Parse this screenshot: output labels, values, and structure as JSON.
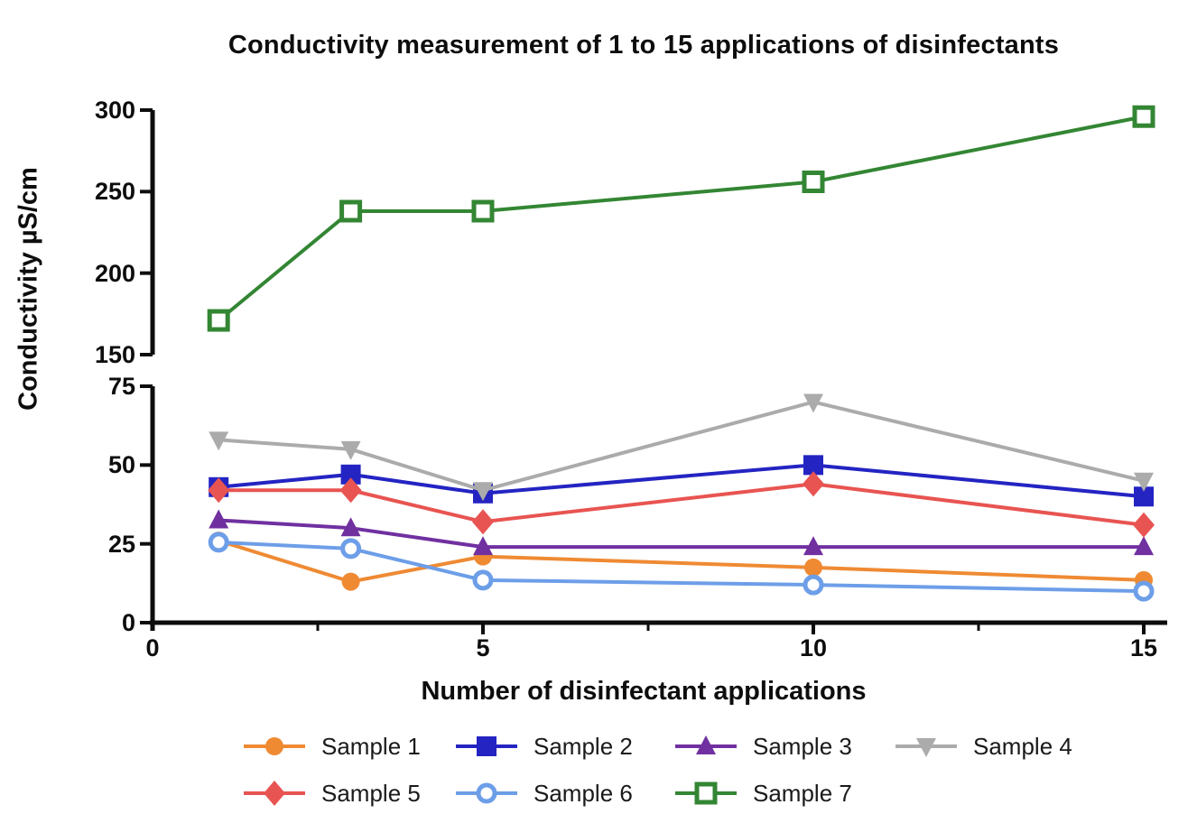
{
  "chart_data": {
    "type": "line",
    "title": "Conductivity measurement of 1 to 15 applications of disinfectants",
    "xlabel": "Number of disinfectant applications",
    "ylabel": "Conductivity µS/cm",
    "x": [
      1,
      3,
      5,
      10,
      15
    ],
    "xlim": [
      0,
      15
    ],
    "x_ticks": [
      0,
      5,
      10,
      15
    ],
    "x_minor_ticks": [
      2.5,
      7.5,
      12.5
    ],
    "y_axis_break": {
      "lower_range": [
        0,
        75
      ],
      "upper_range": [
        150,
        300
      ]
    },
    "y_ticks_lower": [
      0,
      25,
      50,
      75
    ],
    "y_ticks_upper": [
      150,
      200,
      250,
      300
    ],
    "grid": "off",
    "legend_position": "bottom",
    "series": [
      {
        "name": "Sample 1",
        "color": "#EF8A33",
        "marker": "filled-circle",
        "values": [
          26,
          13,
          21,
          17.5,
          13.5
        ]
      },
      {
        "name": "Sample 2",
        "color": "#2424C3",
        "marker": "filled-square",
        "values": [
          43,
          47,
          41,
          50,
          40
        ]
      },
      {
        "name": "Sample 3",
        "color": "#7030A0",
        "marker": "filled-triangle-up",
        "values": [
          32.5,
          30,
          24,
          24,
          24
        ]
      },
      {
        "name": "Sample 4",
        "color": "#ABABAB",
        "marker": "filled-triangle-down",
        "values": [
          58,
          55,
          42,
          70,
          45
        ]
      },
      {
        "name": "Sample 5",
        "color": "#E85451",
        "marker": "filled-diamond",
        "values": [
          42,
          42,
          32,
          44,
          31
        ]
      },
      {
        "name": "Sample 6",
        "color": "#6D9EE8",
        "marker": "open-circle",
        "values": [
          25.5,
          23.5,
          13.5,
          12,
          10
        ]
      },
      {
        "name": "Sample 7",
        "color": "#338633",
        "marker": "open-square",
        "values": [
          171,
          238,
          238,
          256,
          296
        ]
      }
    ]
  }
}
